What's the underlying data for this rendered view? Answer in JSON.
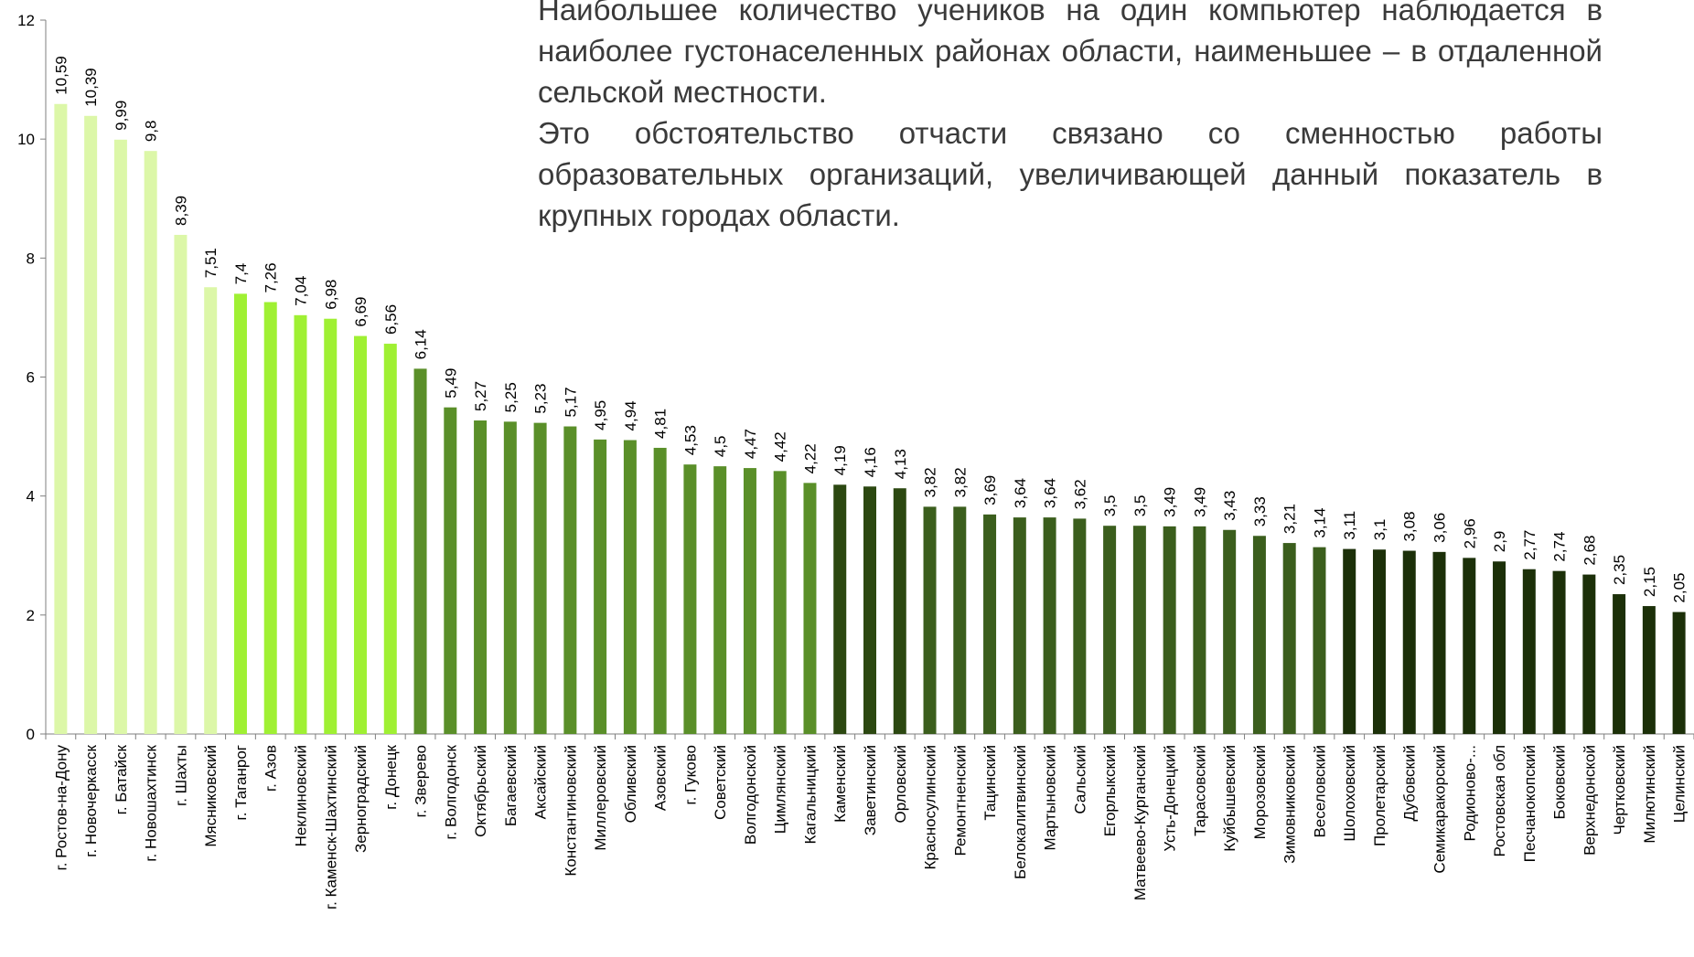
{
  "commentary": {
    "paragraph_1": "Наибольшее количество учеников на один компьютер наблюдается в наиболее густонаселенных районах области, наименьшее – в отдаленной сельской местности.",
    "paragraph_2": "Это обстоятельство отчасти связано со сменностью работы образовательных организаций, увеличивающей данный показатель в крупных городах области."
  },
  "chart_data": {
    "type": "bar",
    "title": "",
    "xlabel": "",
    "ylabel": "",
    "ylim": [
      0,
      12
    ],
    "yticks": [
      "0",
      "2",
      "4",
      "6",
      "8",
      "10",
      "12"
    ],
    "grid": false,
    "legend": "none",
    "categories": [
      "г. Ростов-на-Дону",
      "г. Новочеркасск",
      "г. Батайск",
      "г. Новошахтинск",
      "г. Шахты",
      "Мясниковский",
      "г. Таганрог",
      "г. Азов",
      "Неклиновский",
      "г. Каменск-Шахтинский",
      "Зерноградский",
      "г. Донецк",
      "г. Зверево",
      "г. Волгодонск",
      "Октябрьский",
      "Багаевский",
      "Аксайский",
      "Константиновский",
      "Миллеровский",
      "Обливский",
      "Азовский",
      "г. Гуково",
      "Советский",
      "Волгодонской",
      "Цимлянский",
      "Кагальницкий",
      "Каменский",
      "Заветинский",
      "Орловский",
      "Красносулинский",
      "Ремонтненский",
      "Тацинский",
      "Белокалитвинский",
      "Мартыновский",
      "Сальский",
      "Егорлыкский",
      "Матвеево-Курганский",
      "Усть-Донецкий",
      "Тарасовский",
      "Куйбышевский",
      "Морозовский",
      "Зимовниковский",
      "Веселовский",
      "Шолоховский",
      "Пролетарский",
      "Дубовский",
      "Семикаракорский",
      "Родионово-...",
      "Ростовская обл",
      "Песчанокопский",
      "Боковский",
      "Верхнедонской",
      "Чертковский",
      "Милютинский",
      "Целинский"
    ],
    "values": [
      10.59,
      10.39,
      9.99,
      9.8,
      8.39,
      7.51,
      7.4,
      7.26,
      7.04,
      6.98,
      6.69,
      6.56,
      6.14,
      5.49,
      5.27,
      5.25,
      5.23,
      5.17,
      4.95,
      4.94,
      4.81,
      4.53,
      4.5,
      4.47,
      4.42,
      4.22,
      4.19,
      4.16,
      4.13,
      3.82,
      3.82,
      3.69,
      3.64,
      3.64,
      3.62,
      3.5,
      3.5,
      3.49,
      3.49,
      3.43,
      3.33,
      3.21,
      3.14,
      3.11,
      3.1,
      3.08,
      3.06,
      2.96,
      2.9,
      2.77,
      2.74,
      2.68,
      2.35,
      2.15,
      2.05
    ],
    "data_labels": [
      "10,59",
      "10,39",
      "9,99",
      "9,8",
      "8,39",
      "7,51",
      "7,4",
      "7,26",
      "7,04",
      "6,98",
      "6,69",
      "6,56",
      "6,14",
      "5,49",
      "5,27",
      "5,25",
      "5,23",
      "5,17",
      "4,95",
      "4,94",
      "4,81",
      "4,53",
      "4,5",
      "4,47",
      "4,42",
      "4,22",
      "4,19",
      "4,16",
      "4,13",
      "3,82",
      "3,82",
      "3,69",
      "3,64",
      "3,64",
      "3,62",
      "3,5",
      "3,5",
      "3,49",
      "3,49",
      "3,43",
      "3,33",
      "3,21",
      "3,14",
      "3,11",
      "3,1",
      "3,08",
      "3,06",
      "2,96",
      "2,9",
      "2,77",
      "2,74",
      "2,68",
      "2,35",
      "2,15",
      "2,05"
    ],
    "bar_colors": [
      "#dcf7a8",
      "#dcf7a8",
      "#dcf7a8",
      "#dcf7a8",
      "#dcf7a8",
      "#dcf7a8",
      "#9ff033",
      "#9ff033",
      "#9ff033",
      "#9ff033",
      "#9ff033",
      "#9ff033",
      "#5a8f29",
      "#5a8f29",
      "#5a8f29",
      "#5a8f29",
      "#5a8f29",
      "#5a8f29",
      "#5a8f29",
      "#5a8f29",
      "#5a8f29",
      "#5a8f29",
      "#5a8f29",
      "#5a8f29",
      "#5a8f29",
      "#5a8f29",
      "#2c4811",
      "#2c4811",
      "#2c4811",
      "#3b5e1d",
      "#3b5e1d",
      "#3b5e1d",
      "#3b5e1d",
      "#3b5e1d",
      "#3b5e1d",
      "#3b5e1d",
      "#3b5e1d",
      "#3b5e1d",
      "#3b5e1d",
      "#3b5e1d",
      "#3b5e1d",
      "#3b5e1d",
      "#3b5e1d",
      "#1c3009",
      "#1c3009",
      "#1c3009",
      "#1c3009",
      "#1c3009",
      "#1c3009",
      "#1c3009",
      "#1c3009",
      "#1c3009",
      "#1c3009",
      "#1c3009",
      "#1c3009"
    ]
  }
}
